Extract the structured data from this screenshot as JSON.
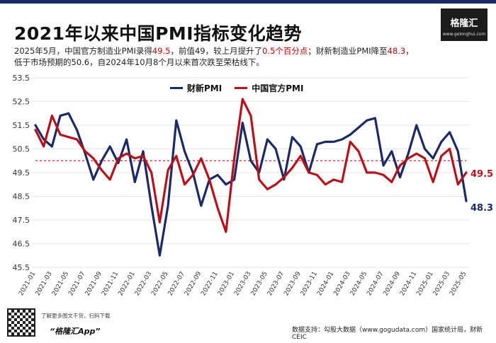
{
  "header": {
    "title": "2021年以来中国PMI指标变化趋势",
    "subtitle_line1_a": "2025年5月，中国官方制造业PMI录得",
    "subtitle_line1_v1": "49.5",
    "subtitle_line1_b": "，前值49，较上月提升了",
    "subtitle_line1_v2": "0.5个百分点",
    "subtitle_line1_c": "；财新制造业PMI降至",
    "subtitle_line1_v3": "48.3",
    "subtitle_line1_d": "，",
    "subtitle_line2": "低于市场预期的50.6，自2024年10月8个月以来首次跌至荣枯线下。"
  },
  "logo": {
    "name": "格隆汇",
    "url": "www.gelonghui.com"
  },
  "footer": {
    "qr_caption": "了解更多图文干货，扫码下载",
    "app_name": "“格隆汇App”",
    "source": "数据支持：勾股大数据（www.gogudata.com）国家统计局，财新CEIC"
  },
  "colors": {
    "caixin": "#1b2a66",
    "official": "#b5121b",
    "reference_line": "#c00000",
    "grid": "#e6e6e6"
  },
  "chart_data": {
    "type": "line",
    "reference_line": 50,
    "ylim": [
      45.5,
      53.5
    ],
    "y_ticks": [
      45.5,
      46.5,
      47.5,
      48.5,
      49.5,
      50.5,
      51.5,
      52.5,
      53.5
    ],
    "x": [
      "2021-01",
      "2021-02",
      "2021-03",
      "2021-04",
      "2021-05",
      "2021-06",
      "2021-07",
      "2021-08",
      "2021-09",
      "2021-10",
      "2021-11",
      "2021-12",
      "2022-01",
      "2022-02",
      "2022-03",
      "2022-04",
      "2022-05",
      "2022-06",
      "2022-07",
      "2022-08",
      "2022-09",
      "2022-10",
      "2022-11",
      "2022-12",
      "2023-01",
      "2023-02",
      "2023-03",
      "2023-04",
      "2023-05",
      "2023-06",
      "2023-07",
      "2023-08",
      "2023-09",
      "2023-10",
      "2023-11",
      "2023-12",
      "2024-01",
      "2024-02",
      "2024-03",
      "2024-04",
      "2024-05",
      "2024-06",
      "2024-07",
      "2024-08",
      "2024-09",
      "2024-10",
      "2024-11",
      "2024-12",
      "2025-01",
      "2025-02",
      "2025-03",
      "2025-04",
      "2025-05"
    ],
    "x_tick_labels": [
      "2021-01",
      "2021-03",
      "2021-05",
      "2021-07",
      "2021-09",
      "2021-11",
      "2022-01",
      "2022-03",
      "2022-05",
      "2022-07",
      "2022-09",
      "2022-11",
      "2023-01",
      "2023-03",
      "2023-05",
      "2023-07",
      "2023-09",
      "2023-11",
      "2024-01",
      "2024-03",
      "2024-05",
      "2024-07",
      "2024-09",
      "2024-11",
      "2025-01",
      "2025-03",
      "2025-05"
    ],
    "series": [
      {
        "name": "财新PMI",
        "color": "#1b2a66",
        "values": [
          51.5,
          50.9,
          50.6,
          51.9,
          52.0,
          51.3,
          50.3,
          49.2,
          50.0,
          50.6,
          49.9,
          50.9,
          49.1,
          50.4,
          48.1,
          46.0,
          48.1,
          51.7,
          50.4,
          49.5,
          48.1,
          49.2,
          49.4,
          49.0,
          49.2,
          51.6,
          50.0,
          49.5,
          50.9,
          50.5,
          49.2,
          51.0,
          50.6,
          49.5,
          50.7,
          50.8,
          50.8,
          50.9,
          51.1,
          51.4,
          51.7,
          51.8,
          49.8,
          50.4,
          49.3,
          50.3,
          51.5,
          50.5,
          50.1,
          50.8,
          51.2,
          50.4,
          48.3
        ]
      },
      {
        "name": "中国官方PMI",
        "color": "#b5121b",
        "values": [
          51.3,
          50.6,
          51.9,
          51.1,
          51.0,
          50.9,
          50.4,
          50.1,
          49.6,
          49.2,
          50.1,
          50.3,
          50.1,
          50.2,
          49.5,
          47.4,
          49.6,
          50.2,
          49.0,
          49.4,
          50.1,
          49.2,
          48.0,
          47.0,
          50.1,
          52.6,
          51.9,
          49.2,
          48.8,
          49.0,
          49.3,
          49.7,
          50.2,
          49.5,
          49.4,
          49.0,
          49.2,
          49.1,
          50.8,
          50.4,
          49.5,
          49.5,
          49.4,
          49.1,
          49.8,
          50.1,
          50.3,
          50.1,
          49.1,
          50.2,
          50.5,
          49.0,
          49.5
        ]
      }
    ],
    "end_labels": [
      "49.5",
      "48.3"
    ]
  }
}
